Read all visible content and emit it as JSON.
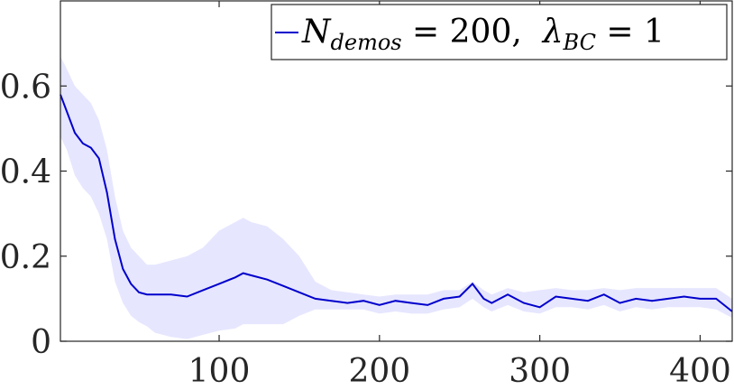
{
  "chart_data": {
    "type": "line",
    "title": "",
    "xlabel": "",
    "ylabel": "",
    "xlim": [
      1,
      420
    ],
    "ylim": [
      0,
      0.8
    ],
    "xticks": [
      100,
      200,
      300,
      400
    ],
    "xtick_labels": [
      "100",
      "200",
      "300",
      "400"
    ],
    "yticks": [
      0,
      0.2,
      0.4,
      0.6
    ],
    "ytick_labels": [
      "0",
      "0.2",
      "0.4",
      "0.6"
    ],
    "grid": false,
    "legend": {
      "placement": "top-right",
      "entries": [
        {
          "base": "N",
          "sub": "demos",
          "rest": " = 200,  ",
          "lambda": "λ",
          "sub2": "BC",
          "rest2": " = 1"
        }
      ]
    },
    "series": [
      {
        "name": "N_demos = 200, λ_BC = 1",
        "color": "#0000cc",
        "band_color": "#e6e6ff",
        "x": [
          1,
          5,
          10,
          15,
          20,
          25,
          30,
          35,
          40,
          45,
          50,
          55,
          60,
          70,
          80,
          90,
          100,
          110,
          115,
          120,
          130,
          140,
          150,
          160,
          170,
          180,
          190,
          200,
          210,
          220,
          230,
          240,
          250,
          258,
          265,
          270,
          280,
          290,
          300,
          310,
          320,
          330,
          340,
          350,
          360,
          370,
          380,
          390,
          400,
          410,
          420
        ],
        "mean": [
          0.58,
          0.54,
          0.49,
          0.465,
          0.455,
          0.43,
          0.35,
          0.24,
          0.17,
          0.135,
          0.115,
          0.11,
          0.11,
          0.11,
          0.105,
          0.12,
          0.135,
          0.15,
          0.16,
          0.155,
          0.145,
          0.13,
          0.115,
          0.1,
          0.095,
          0.09,
          0.095,
          0.085,
          0.095,
          0.09,
          0.085,
          0.1,
          0.105,
          0.135,
          0.1,
          0.09,
          0.11,
          0.09,
          0.08,
          0.105,
          0.1,
          0.095,
          0.11,
          0.09,
          0.1,
          0.095,
          0.1,
          0.105,
          0.1,
          0.1,
          0.07
        ],
        "upper": [
          0.67,
          0.64,
          0.6,
          0.58,
          0.56,
          0.52,
          0.45,
          0.34,
          0.26,
          0.22,
          0.2,
          0.18,
          0.18,
          0.19,
          0.2,
          0.22,
          0.26,
          0.28,
          0.29,
          0.28,
          0.27,
          0.24,
          0.2,
          0.14,
          0.12,
          0.115,
          0.11,
          0.105,
          0.11,
          0.11,
          0.11,
          0.12,
          0.12,
          0.14,
          0.12,
          0.11,
          0.125,
          0.115,
          0.12,
          0.125,
          0.12,
          0.12,
          0.125,
          0.12,
          0.125,
          0.125,
          0.125,
          0.125,
          0.125,
          0.125,
          0.1
        ],
        "lower": [
          0.48,
          0.45,
          0.39,
          0.36,
          0.34,
          0.3,
          0.24,
          0.14,
          0.09,
          0.06,
          0.045,
          0.035,
          0.02,
          0.01,
          0.005,
          0.015,
          0.025,
          0.03,
          0.04,
          0.04,
          0.04,
          0.04,
          0.06,
          0.075,
          0.075,
          0.075,
          0.075,
          0.065,
          0.07,
          0.065,
          0.065,
          0.075,
          0.08,
          0.1,
          0.08,
          0.07,
          0.085,
          0.07,
          0.065,
          0.08,
          0.08,
          0.075,
          0.085,
          0.07,
          0.08,
          0.075,
          0.08,
          0.08,
          0.08,
          0.075,
          0.055
        ]
      }
    ]
  }
}
